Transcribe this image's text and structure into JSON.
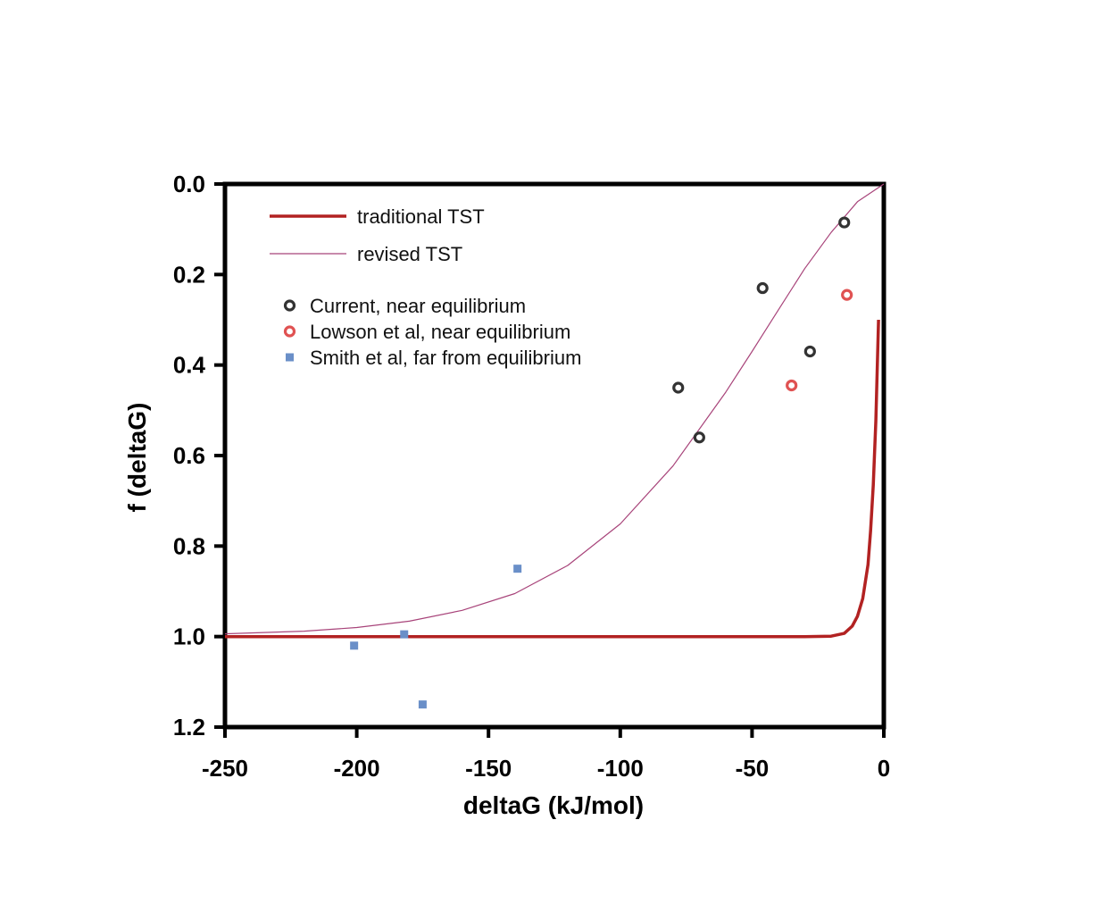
{
  "chart_data": {
    "type": "scatter",
    "xlabel": "deltaG (kJ/mol)",
    "ylabel": "f (deltaG)",
    "xlim": [
      -250,
      0
    ],
    "ylim": [
      1.2,
      0.0
    ],
    "y_axis_inverted": true,
    "grid": false,
    "legend_position": "top-left",
    "x_ticks": [
      "-250",
      "-200",
      "-150",
      "-100",
      "-50",
      "0"
    ],
    "x_tick_values": [
      -250,
      -200,
      -150,
      -100,
      -50,
      0
    ],
    "y_ticks": [
      "0.0",
      "0.2",
      "0.4",
      "0.6",
      "0.8",
      "1.0",
      "1.2"
    ],
    "y_tick_values": [
      0.0,
      0.2,
      0.4,
      0.6,
      0.8,
      1.0,
      1.2
    ],
    "series": [
      {
        "name": "traditional TST",
        "kind": "line",
        "color": "#b22222",
        "x": [
          -250,
          -200,
          -150,
          -100,
          -50,
          -30,
          -20,
          -15,
          -12,
          -10,
          -8,
          -6,
          -5,
          -4,
          -3,
          -2
        ],
        "y": [
          1.0,
          1.0,
          1.0,
          1.0,
          1.0,
          1.0,
          0.999,
          0.993,
          0.977,
          0.955,
          0.916,
          0.841,
          0.766,
          0.665,
          0.522,
          0.3
        ]
      },
      {
        "name": "revised TST",
        "kind": "line",
        "color": "#a8447a",
        "x": [
          -250,
          -220,
          -200,
          -180,
          -160,
          -140,
          -120,
          -100,
          -80,
          -60,
          -50,
          -40,
          -30,
          -20,
          -10,
          0
        ],
        "y": [
          0.994,
          0.988,
          0.98,
          0.966,
          0.942,
          0.905,
          0.843,
          0.751,
          0.623,
          0.46,
          0.37,
          0.278,
          0.187,
          0.107,
          0.039,
          0.0
        ]
      },
      {
        "name": "Current, near equilibrium",
        "kind": "scatter",
        "marker": "open-circle",
        "color": "#333333",
        "x": [
          -15,
          -46,
          -28,
          -78,
          -70
        ],
        "y": [
          0.085,
          0.23,
          0.37,
          0.45,
          0.56
        ]
      },
      {
        "name": "Lowson et al, near equilibrium",
        "kind": "scatter",
        "marker": "open-circle",
        "color": "#e05252",
        "x": [
          -14,
          -35
        ],
        "y": [
          0.245,
          0.445
        ]
      },
      {
        "name": "Smith et al, far from equilibrium",
        "kind": "scatter",
        "marker": "square",
        "color": "#6a8fc8",
        "x": [
          -139,
          -182,
          -201,
          -175
        ],
        "y": [
          0.85,
          0.995,
          1.02,
          1.15
        ]
      }
    ]
  }
}
